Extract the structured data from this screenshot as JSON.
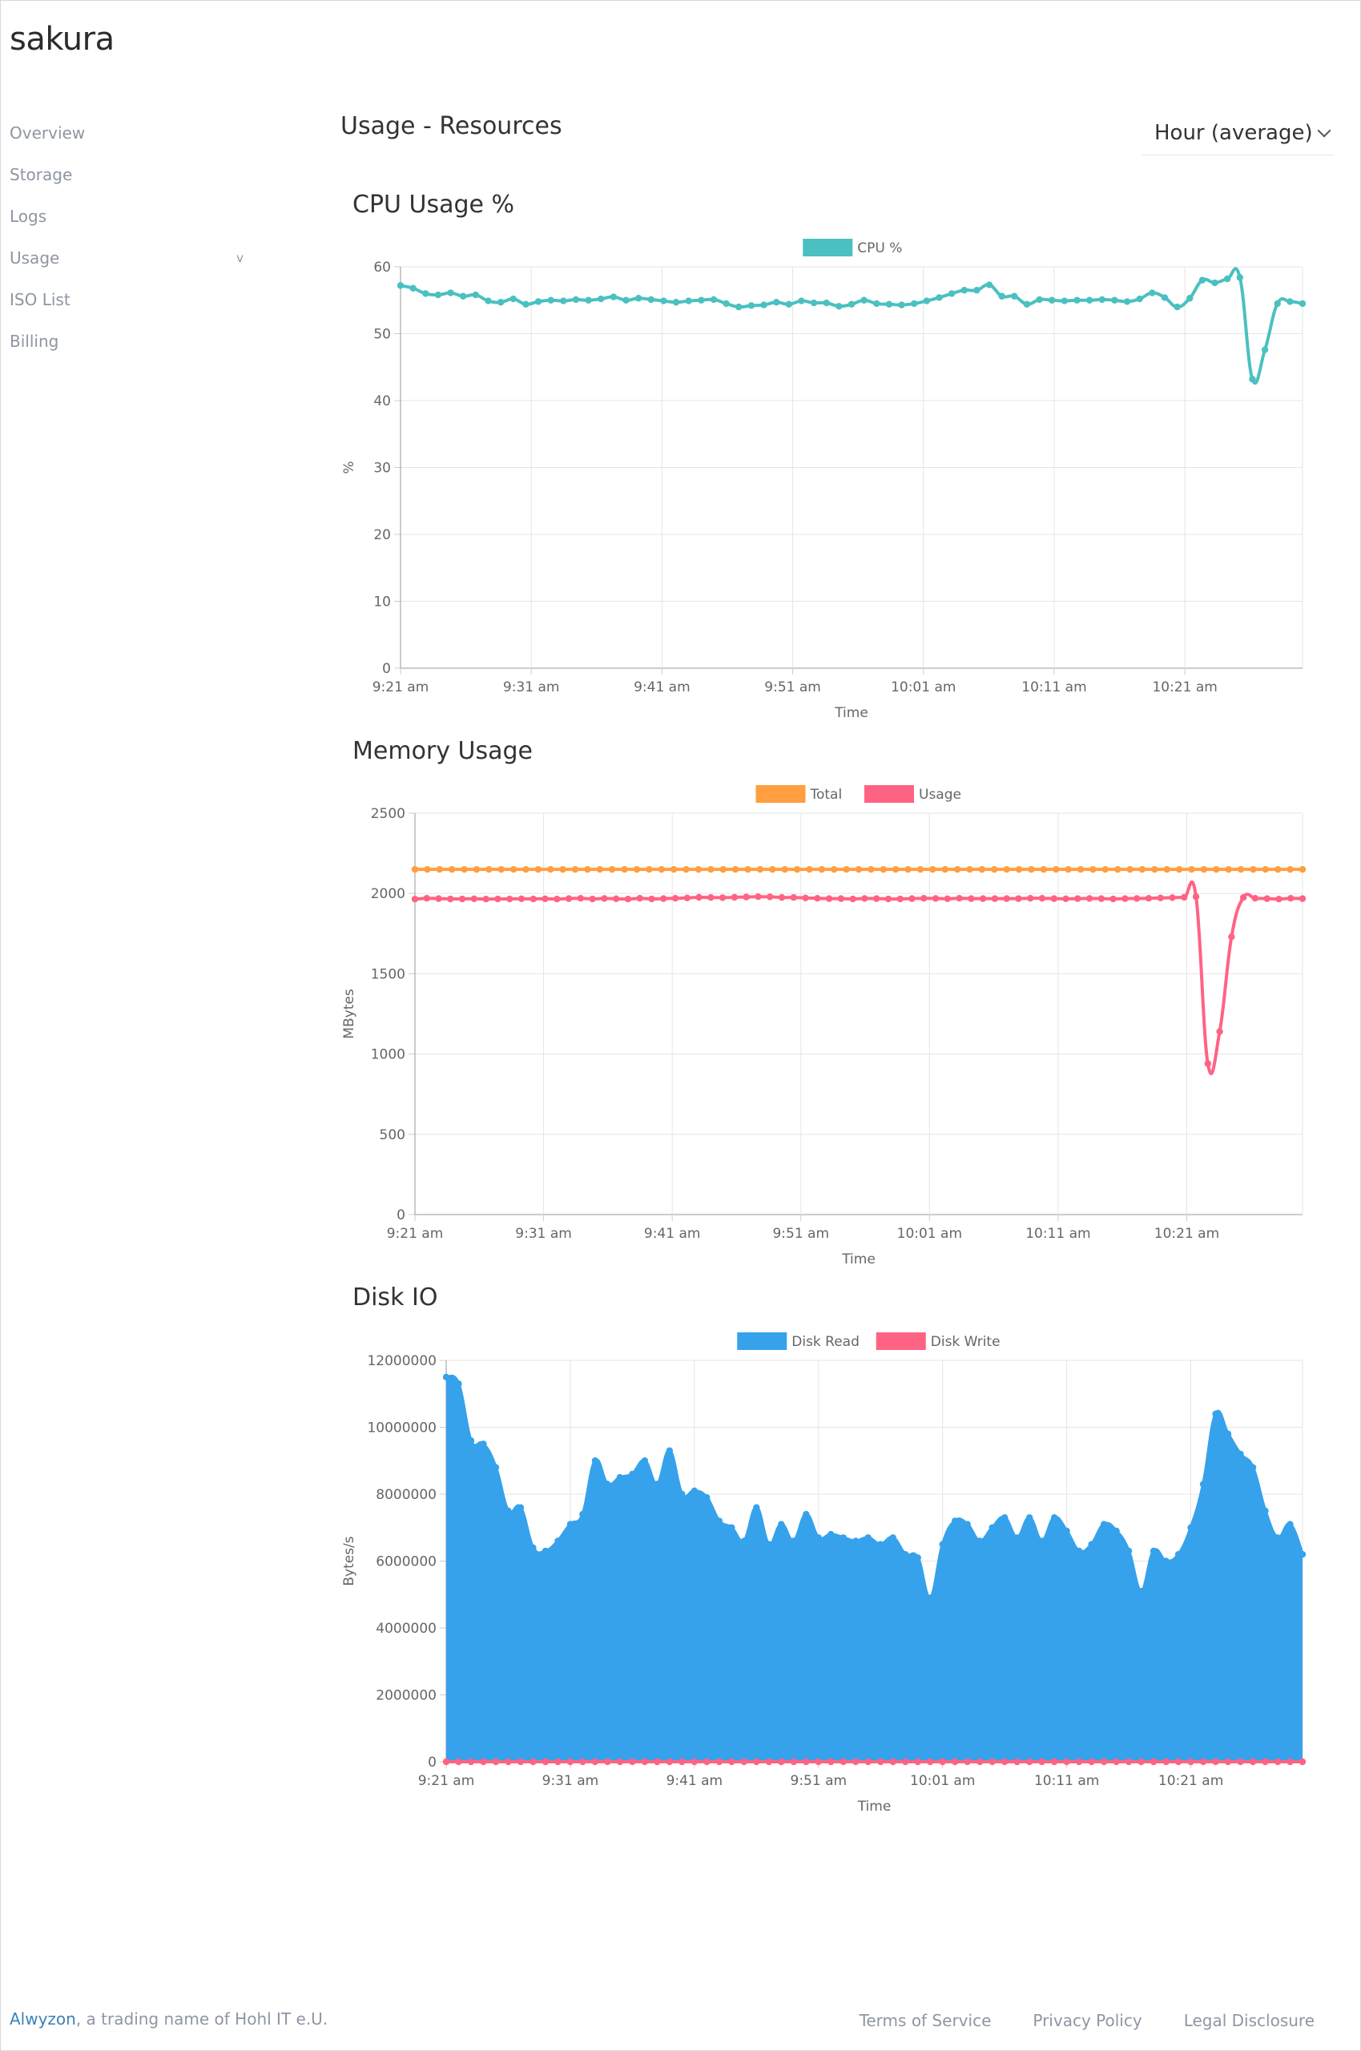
{
  "app": {
    "brand": "sakura"
  },
  "sidebar": {
    "items": [
      {
        "label": "Overview"
      },
      {
        "label": "Storage"
      },
      {
        "label": "Logs"
      },
      {
        "label": "Usage",
        "caret": "v"
      },
      {
        "label": "ISO List"
      },
      {
        "label": "Billing"
      }
    ]
  },
  "header": {
    "title": "Usage - Resources",
    "range": "Hour (average)"
  },
  "sections": {
    "cpu": "CPU Usage %",
    "memory": "Memory Usage",
    "disk": "Disk IO"
  },
  "footer": {
    "brand_link": "Alwyzon",
    "brand_rest": ", a trading name of Hohl IT e.U.",
    "links": [
      "Terms of Service",
      "Privacy Policy",
      "Legal Disclosure"
    ]
  },
  "colors": {
    "cpu": "#4bc0c0",
    "total": "#ff9f40",
    "usage": "#ff6384",
    "read": "#36a2eb",
    "write": "#ff6384",
    "grid": "#e5e5e5"
  },
  "chart_data": [
    {
      "id": "cpu",
      "type": "line",
      "title": "CPU Usage %",
      "xlabel": "Time",
      "ylabel": "%",
      "ylim": [
        0,
        60
      ],
      "yticks": [
        "0",
        "10",
        "20",
        "30",
        "40",
        "50",
        "60"
      ],
      "xticks": [
        "9:21 am",
        "9:31 am",
        "9:41 am",
        "9:51 am",
        "10:01 am",
        "10:11 am",
        "10:21 am"
      ],
      "series": [
        {
          "name": "CPU %",
          "color": "#4bc0c0",
          "fill": false,
          "values": [
            57.2,
            56.8,
            56.0,
            55.8,
            56.1,
            55.6,
            55.8,
            54.9,
            54.7,
            55.2,
            54.4,
            54.8,
            55.0,
            54.9,
            55.1,
            55.0,
            55.2,
            55.5,
            55.0,
            55.3,
            55.1,
            54.9,
            54.7,
            54.9,
            55.0,
            55.1,
            54.5,
            54.0,
            54.2,
            54.3,
            54.7,
            54.4,
            54.9,
            54.6,
            54.6,
            54.1,
            54.4,
            55.0,
            54.5,
            54.4,
            54.3,
            54.5,
            54.9,
            55.4,
            56.0,
            56.5,
            56.5,
            57.3,
            55.6,
            55.6,
            54.4,
            55.1,
            55.0,
            54.9,
            55.0,
            55.0,
            55.1,
            55.0,
            54.8,
            55.2,
            56.1,
            55.4,
            54.0,
            55.3,
            58.0,
            57.6,
            58.2,
            58.4,
            43.2,
            47.6,
            54.5,
            54.8,
            54.5
          ]
        }
      ]
    },
    {
      "id": "memory",
      "type": "line",
      "title": "Memory Usage",
      "xlabel": "Time",
      "ylabel": "MBytes",
      "ylim": [
        0,
        2500
      ],
      "yticks": [
        "0",
        "500",
        "1000",
        "1500",
        "2000",
        "2500"
      ],
      "xticks": [
        "9:21 am",
        "9:31 am",
        "9:41 am",
        "9:51 am",
        "10:01 am",
        "10:11 am",
        "10:21 am"
      ],
      "series": [
        {
          "name": "Total",
          "color": "#ff9f40",
          "fill": false,
          "values": [
            2150,
            2150,
            2150,
            2150,
            2150,
            2150,
            2150,
            2150,
            2150,
            2150,
            2150,
            2150,
            2150,
            2150,
            2150,
            2150,
            2150,
            2150,
            2150,
            2150,
            2150,
            2150,
            2150,
            2150,
            2150,
            2150,
            2150,
            2150,
            2150,
            2150,
            2150,
            2150,
            2150,
            2150,
            2150,
            2150,
            2150,
            2150,
            2150,
            2150,
            2150,
            2150,
            2150,
            2150,
            2150,
            2150,
            2150,
            2150,
            2150,
            2150,
            2150,
            2150,
            2150,
            2150,
            2150,
            2150,
            2150,
            2150,
            2150,
            2150,
            2150,
            2150,
            2150,
            2150,
            2150,
            2150,
            2150,
            2150,
            2150,
            2150,
            2150,
            2150,
            2150
          ]
        },
        {
          "name": "Usage",
          "color": "#ff6384",
          "fill": false,
          "values": [
            1965,
            1970,
            1968,
            1966,
            1966,
            1967,
            1965,
            1966,
            1966,
            1967,
            1966,
            1967,
            1965,
            1968,
            1970,
            1966,
            1969,
            1967,
            1965,
            1970,
            1966,
            1968,
            1970,
            1972,
            1976,
            1975,
            1974,
            1976,
            1978,
            1980,
            1979,
            1975,
            1975,
            1972,
            1970,
            1968,
            1968,
            1966,
            1969,
            1968,
            1966,
            1966,
            1968,
            1970,
            1969,
            1967,
            1970,
            1968,
            1968,
            1968,
            1968,
            1968,
            1970,
            1970,
            1968,
            1967,
            1968,
            1969,
            1968,
            1966,
            1968,
            1969,
            1970,
            1972,
            1974,
            1976,
            1980,
            940,
            1140,
            1730,
            1975,
            1970,
            1968,
            1965,
            1970,
            1968
          ]
        }
      ]
    },
    {
      "id": "disk",
      "type": "area",
      "title": "Disk IO",
      "xlabel": "Time",
      "ylabel": "Bytes/s",
      "ylim": [
        0,
        12000000
      ],
      "yticks": [
        "0",
        "2000000",
        "4000000",
        "6000000",
        "8000000",
        "10000000",
        "12000000"
      ],
      "xticks": [
        "9:21 am",
        "9:31 am",
        "9:41 am",
        "9:51 am",
        "10:01 am",
        "10:11 am",
        "10:21 am"
      ],
      "series": [
        {
          "name": "Disk Read",
          "color": "#36a2eb",
          "fill": true,
          "values": [
            11500000,
            11300000,
            9600000,
            9500000,
            8800000,
            7500000,
            7600000,
            6400000,
            6300000,
            6600000,
            7100000,
            7400000,
            9000000,
            8300000,
            8500000,
            8600000,
            9000000,
            8300000,
            9300000,
            8000000,
            8100000,
            7900000,
            7200000,
            7000000,
            6600000,
            7600000,
            6500000,
            7100000,
            6600000,
            7400000,
            6700000,
            6800000,
            6700000,
            6600000,
            6700000,
            6500000,
            6700000,
            6200000,
            6100000,
            4900000,
            6500000,
            7200000,
            7100000,
            6600000,
            7000000,
            7300000,
            6700000,
            7300000,
            6600000,
            7300000,
            6900000,
            6300000,
            6500000,
            7100000,
            6900000,
            6300000,
            5100000,
            6300000,
            6000000,
            6200000,
            7000000,
            8300000,
            10400000,
            9800000,
            9200000,
            8800000,
            7500000,
            6700000,
            7100000,
            6200000
          ]
        },
        {
          "name": "Disk Write",
          "color": "#ff6384",
          "fill": false,
          "values": [
            0,
            0,
            0,
            0,
            0,
            0,
            0,
            0,
            0,
            0,
            0,
            0,
            0,
            0,
            0,
            0,
            0,
            0,
            0,
            0,
            0,
            0,
            0,
            0,
            0,
            0,
            0,
            0,
            0,
            0,
            0,
            0,
            0,
            0,
            0,
            0,
            0,
            0,
            0,
            0,
            0,
            0,
            0,
            0,
            0,
            0,
            0,
            0,
            0,
            0,
            0,
            0,
            0,
            0,
            0,
            0,
            0,
            0,
            0,
            0,
            0,
            0,
            0,
            0,
            0,
            0,
            0,
            0,
            0,
            0
          ]
        }
      ]
    }
  ]
}
